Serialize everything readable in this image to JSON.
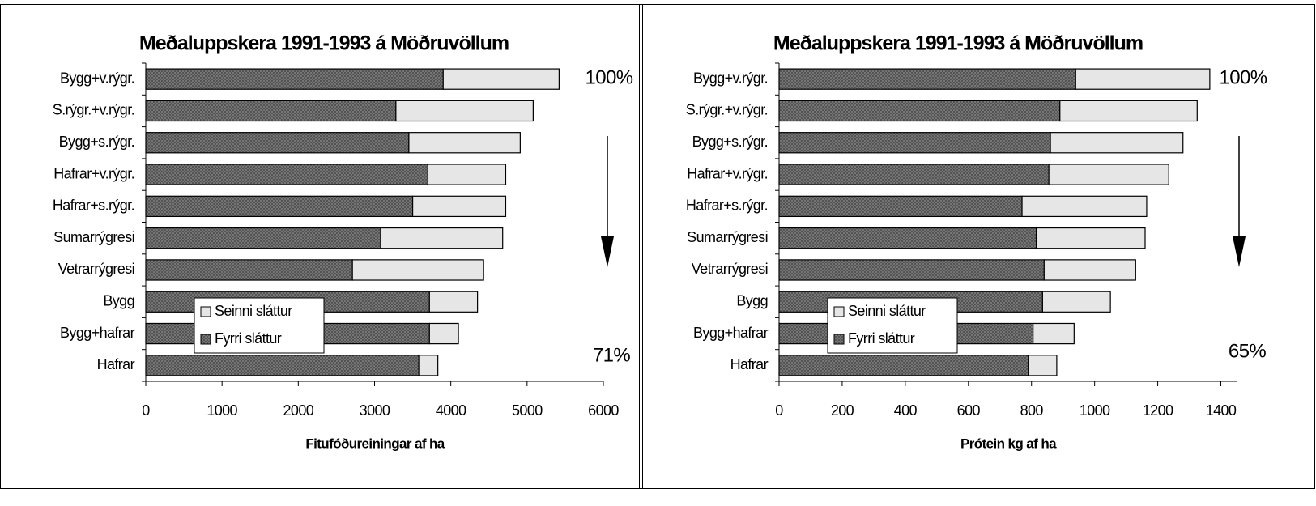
{
  "chart_data": [
    {
      "type": "bar",
      "orientation": "horizontal",
      "stacked": true,
      "title": "Meðaluppskera 1991-1993 á Möðruvöllum",
      "xlabel": "Fitufóðureiningar af ha",
      "categories": [
        "Bygg+v.rýgr.",
        "S.rýgr.+v.rýgr.",
        "Bygg+s.rýgr.",
        "Hafrar+v.rýgr.",
        "Hafrar+s.rýgr.",
        "Sumarrýgresi",
        "Vetrarrýgresi",
        "Bygg",
        "Bygg+hafrar",
        "Hafrar"
      ],
      "series": [
        {
          "name": "Fyrri sláttur",
          "color": "#7a7a7a",
          "values": [
            3900,
            3280,
            3450,
            3700,
            3500,
            3080,
            2710,
            3720,
            3720,
            3580
          ]
        },
        {
          "name": "Seinni sláttur",
          "color": "#e6e6e6",
          "values": [
            1520,
            1800,
            1460,
            1020,
            1220,
            1600,
            1720,
            630,
            380,
            250
          ]
        }
      ],
      "xlim": [
        0,
        6000
      ],
      "xticks": [
        0,
        1000,
        2000,
        3000,
        4000,
        5000,
        6000
      ],
      "annotations": [
        "100%",
        "71%"
      ],
      "legend": "lower left"
    },
    {
      "type": "bar",
      "orientation": "horizontal",
      "stacked": true,
      "title": "Meðaluppskera 1991-1993 á Möðruvöllum",
      "xlabel": "Prótein kg af ha",
      "categories": [
        "Bygg+v.rýgr.",
        "S.rýgr.+v.rýgr.",
        "Bygg+s.rýgr.",
        "Hafrar+v.rýgr.",
        "Hafrar+s.rýgr.",
        "Sumarrýgresi",
        "Vetrarrýgresi",
        "Bygg",
        "Bygg+hafrar",
        "Hafrar"
      ],
      "series": [
        {
          "name": "Fyrri sláttur",
          "color": "#7a7a7a",
          "values": [
            940,
            890,
            860,
            855,
            770,
            815,
            840,
            835,
            805,
            790
          ]
        },
        {
          "name": "Seinni sláttur",
          "color": "#e6e6e6",
          "values": [
            425,
            435,
            420,
            380,
            395,
            345,
            290,
            215,
            130,
            90
          ]
        }
      ],
      "xlim": [
        0,
        1450
      ],
      "xticks": [
        0,
        200,
        400,
        600,
        800,
        1000,
        1200,
        1400
      ],
      "annotations": [
        "100%",
        "65%"
      ],
      "legend": "lower left"
    }
  ]
}
